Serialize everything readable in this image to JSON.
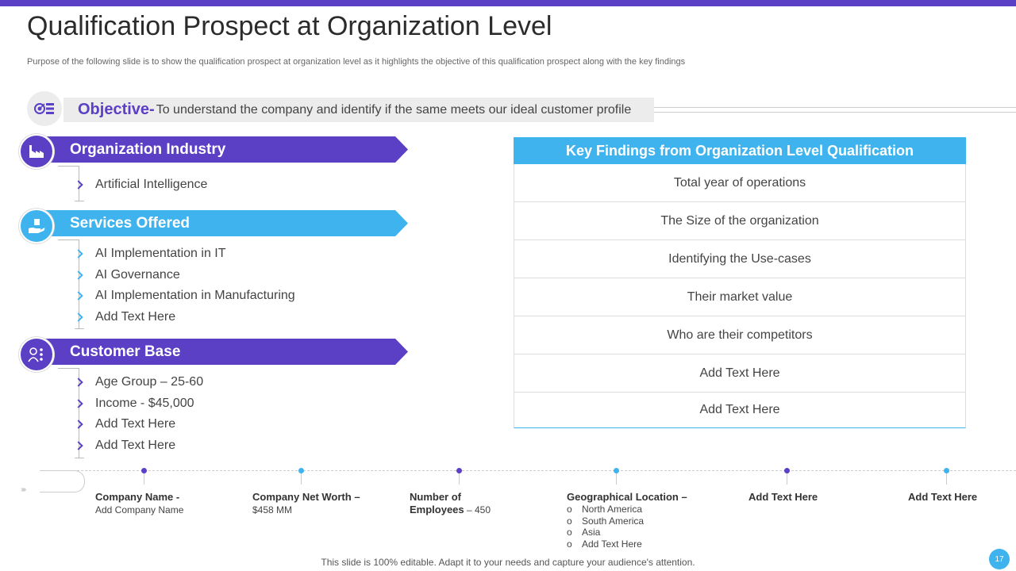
{
  "header": {
    "title": "Qualification Prospect at Organization Level",
    "subtitle": "Purpose of the following slide is to show the qualification prospect at organization level as it highlights the objective of this qualification prospect along with the key findings"
  },
  "objective": {
    "label": "Objective-",
    "text": "To understand  the company and identify if the same meets our ideal customer profile"
  },
  "categories": [
    {
      "title": "Organization Industry",
      "items": [
        "Artificial Intelligence"
      ]
    },
    {
      "title": "Services Offered",
      "items": [
        "AI Implementation  in IT",
        "AI Governance",
        "AI Implementation  in Manufacturing",
        "Add Text Here"
      ]
    },
    {
      "title": "Customer Base",
      "items": [
        "Age Group – 25-60",
        "Income  - $45,000",
        "Add Text Here",
        "Add Text Here"
      ]
    }
  ],
  "key_findings": {
    "header": "Key Findings from Organization Level Qualification",
    "rows": [
      "Total year of operations",
      "The Size of the organization",
      "Identifying  the Use-cases",
      "Their market value",
      "Who are their competitors",
      "Add Text Here",
      "Add Text Here"
    ]
  },
  "timeline": [
    {
      "label": "Company Name -",
      "value": "Add Company  Name"
    },
    {
      "label": "Company Net Worth –",
      "value": "$458 MM"
    },
    {
      "label": "Number of",
      "label2": "Employees",
      "value": " – 450"
    },
    {
      "label": "Geographical Location –",
      "list": [
        "North America",
        "South America",
        "Asia",
        "Add Text Here"
      ]
    },
    {
      "label": "Add Text Here"
    },
    {
      "label": "Add Text Here"
    }
  ],
  "footer": {
    "text": "This slide is 100% editable. Adapt it to your needs and capture your audience's attention.",
    "page": "17"
  },
  "colors": {
    "purple": "#5b3fc4",
    "blue": "#3fb3ee"
  },
  "icons": [
    "target-list-icon",
    "factory-icon",
    "hand-service-icon",
    "customer-icon"
  ]
}
